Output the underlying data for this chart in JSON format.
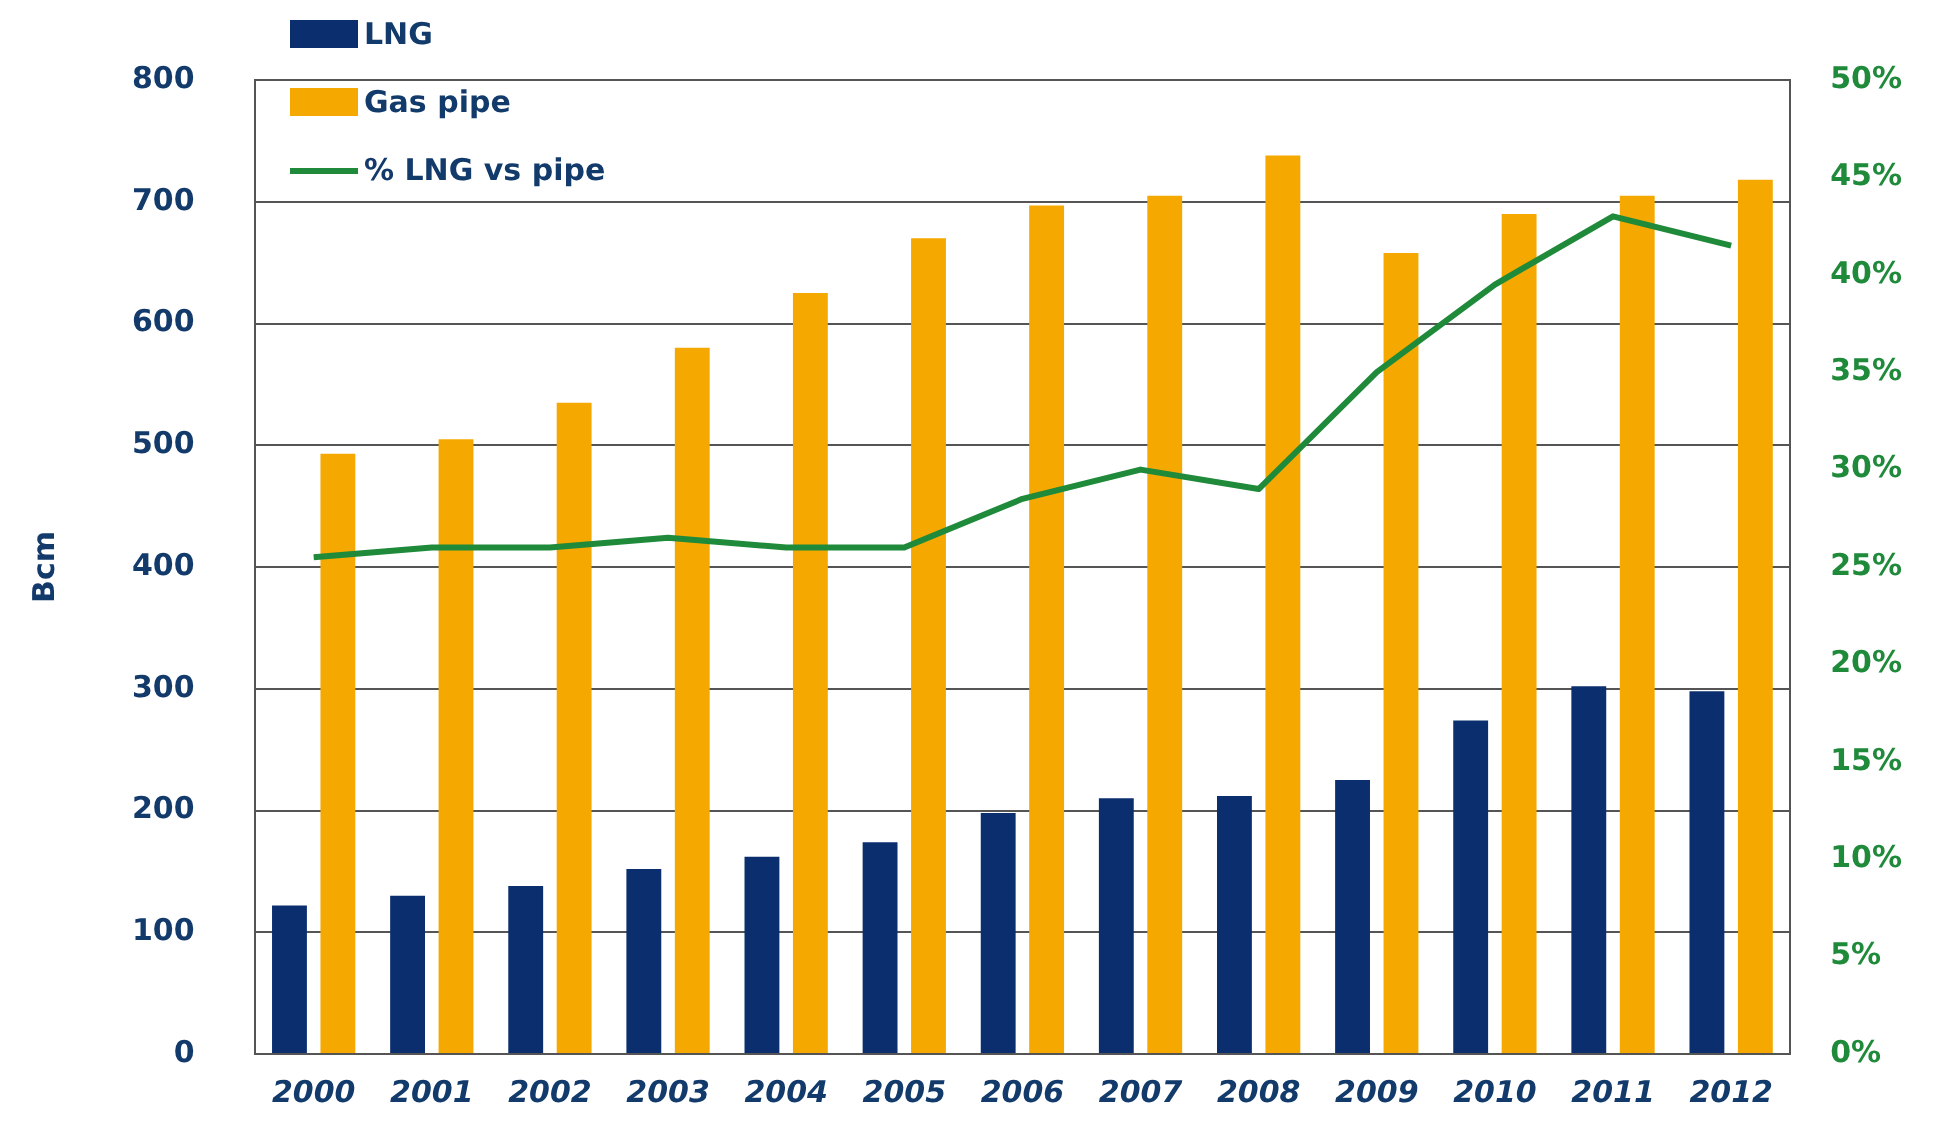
{
  "chart_data": {
    "type": "bar",
    "ylabel": "Bcm",
    "categories": [
      "2000",
      "2001",
      "2002",
      "2003",
      "2004",
      "2005",
      "2006",
      "2007",
      "2008",
      "2009",
      "2010",
      "2011",
      "2012"
    ],
    "series": [
      {
        "name": "LNG",
        "color": "#0b2e6e",
        "values": [
          122,
          130,
          138,
          152,
          162,
          174,
          198,
          210,
          212,
          225,
          274,
          302,
          298
        ]
      },
      {
        "name": "Gas pipe",
        "color": "#f5a800",
        "values": [
          493,
          505,
          535,
          580,
          625,
          670,
          697,
          705,
          738,
          658,
          690,
          705,
          718
        ]
      },
      {
        "name": "% LNG vs pipe",
        "type": "line",
        "axis": "y2",
        "color": "#1e8a3a",
        "values": [
          25.5,
          26,
          26,
          26.5,
          26,
          26,
          28.5,
          30,
          29,
          35,
          39.5,
          43,
          41.5
        ]
      }
    ],
    "ylim": [
      0,
      800
    ],
    "yticks": [
      0,
      100,
      200,
      300,
      400,
      500,
      600,
      700,
      800
    ],
    "y2lim": [
      0,
      50
    ],
    "y2ticks": [
      {
        "value": 0,
        "label": "0%"
      },
      {
        "value": 5,
        "label": "5%"
      },
      {
        "value": 10,
        "label": "10%"
      },
      {
        "value": 15,
        "label": "15%"
      },
      {
        "value": 20,
        "label": "20%"
      },
      {
        "value": 25,
        "label": "25%"
      },
      {
        "value": 30,
        "label": "30%"
      },
      {
        "value": 35,
        "label": "35%"
      },
      {
        "value": 40,
        "label": "40%"
      },
      {
        "value": 45,
        "label": "45%"
      },
      {
        "value": 50,
        "label": "50%"
      }
    ],
    "grid": "y",
    "legend": "top left",
    "marker": "none"
  }
}
